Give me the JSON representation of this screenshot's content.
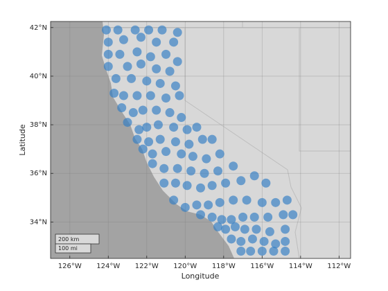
{
  "chart_data": {
    "type": "scatter",
    "x_label": "Longitude",
    "y_label": "Latitude",
    "xlim": [
      -127,
      -111.4
    ],
    "ylim": [
      32.5,
      42.25
    ],
    "xticks": [
      {
        "value": -126,
        "label": "126°W"
      },
      {
        "value": -124,
        "label": "124°W"
      },
      {
        "value": -122,
        "label": "122°W"
      },
      {
        "value": -120,
        "label": "120°W"
      },
      {
        "value": -118,
        "label": "118°W"
      },
      {
        "value": -116,
        "label": "116°W"
      },
      {
        "value": -114,
        "label": "114°W"
      },
      {
        "value": -112,
        "label": "112°W"
      }
    ],
    "yticks": [
      {
        "value": 34,
        "label": "34°N"
      },
      {
        "value": 36,
        "label": "36°N"
      },
      {
        "value": 38,
        "label": "38°N"
      },
      {
        "value": 40,
        "label": "40°N"
      },
      {
        "value": 42,
        "label": "42°N"
      }
    ],
    "grid": true,
    "color": "#2f7dc4",
    "scale_bar": [
      "200 km",
      "100 mi"
    ],
    "x": [
      -124.1,
      -123.5,
      -122.6,
      -121.9,
      -121.2,
      -120.4,
      -124.0,
      -123.2,
      -122.3,
      -121.5,
      -120.6,
      -124.0,
      -123.4,
      -122.5,
      -121.8,
      -121.0,
      -120.4,
      -124.0,
      -123.0,
      -122.3,
      -121.5,
      -120.8,
      -123.6,
      -122.8,
      -122.0,
      -121.3,
      -120.5,
      -123.7,
      -123.2,
      -122.5,
      -121.8,
      -121.0,
      -120.3,
      -123.3,
      -122.7,
      -122.2,
      -121.5,
      -120.8,
      -120.2,
      -123.0,
      -122.4,
      -122.0,
      -121.4,
      -120.6,
      -119.9,
      -119.4,
      -122.5,
      -121.9,
      -121.3,
      -120.5,
      -119.8,
      -119.1,
      -118.6,
      -122.2,
      -121.7,
      -121.0,
      -120.2,
      -119.6,
      -118.9,
      -118.2,
      -121.7,
      -121.1,
      -120.4,
      -119.7,
      -119.0,
      -118.3,
      -117.5,
      -121.1,
      -120.5,
      -119.9,
      -119.2,
      -118.6,
      -117.9,
      -117.1,
      -116.4,
      -115.8,
      -120.6,
      -120.0,
      -119.4,
      -118.8,
      -118.2,
      -117.5,
      -116.8,
      -116.0,
      -115.3,
      -114.7,
      -119.2,
      -118.6,
      -118.1,
      -117.6,
      -117.0,
      -116.4,
      -115.7,
      -114.9,
      -114.4,
      -118.3,
      -117.9,
      -117.4,
      -116.9,
      -116.3,
      -115.6,
      -114.8,
      -117.6,
      -117.1,
      -116.5,
      -115.9,
      -115.3,
      -114.8,
      -117.1,
      -116.6,
      -116.0,
      -115.4,
      -114.8
    ],
    "values": [
      41.9,
      41.9,
      41.9,
      41.9,
      41.9,
      41.8,
      41.4,
      41.5,
      41.6,
      41.4,
      41.4,
      40.9,
      40.9,
      41.0,
      40.8,
      40.9,
      40.6,
      40.4,
      40.4,
      40.5,
      40.3,
      40.2,
      39.9,
      39.9,
      39.8,
      39.7,
      39.6,
      39.3,
      39.2,
      39.2,
      39.2,
      39.1,
      39.2,
      38.7,
      38.5,
      38.6,
      38.6,
      38.5,
      38.3,
      38.1,
      37.8,
      37.9,
      38.0,
      37.9,
      37.8,
      37.9,
      37.4,
      37.3,
      37.4,
      37.3,
      37.2,
      37.4,
      37.4,
      37.0,
      36.8,
      36.9,
      36.8,
      36.7,
      36.6,
      36.8,
      36.4,
      36.2,
      36.2,
      36.1,
      36.0,
      36.1,
      36.3,
      35.6,
      35.6,
      35.5,
      35.4,
      35.5,
      35.6,
      35.7,
      35.9,
      35.6,
      34.9,
      34.6,
      34.7,
      34.7,
      34.8,
      34.9,
      34.9,
      34.8,
      34.8,
      34.9,
      34.3,
      34.2,
      34.1,
      34.1,
      34.2,
      34.2,
      34.2,
      34.3,
      34.3,
      33.8,
      33.7,
      33.8,
      33.7,
      33.7,
      33.6,
      33.7,
      33.3,
      33.2,
      33.3,
      33.2,
      33.1,
      33.2,
      32.8,
      32.8,
      32.8,
      32.8,
      32.8
    ]
  }
}
